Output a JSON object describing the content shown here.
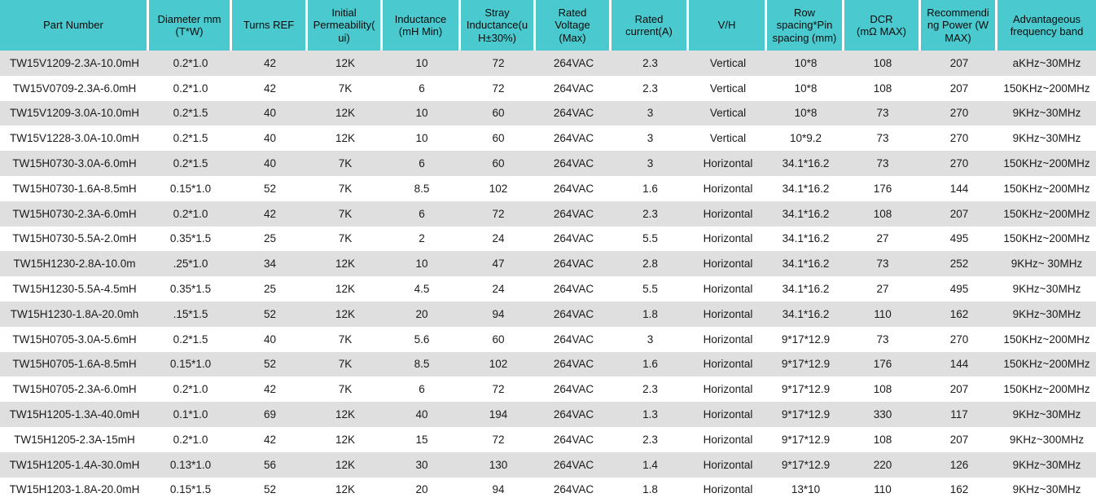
{
  "colors": {
    "header_background": "#4AC9CE",
    "header_text": "#0b0b0b",
    "row_alternate_background": "#DFDFDF",
    "row_background": "#FFFFFF",
    "cell_text": "#1B1B1B",
    "header_divider": "#FFFFFF"
  },
  "table": {
    "columns": [
      {
        "id": "part-number",
        "label": "Part Number"
      },
      {
        "id": "diameter",
        "label": "Diameter mm\n(T*W)"
      },
      {
        "id": "turns-ref",
        "label": "Turns  REF"
      },
      {
        "id": "initial-permeability",
        "label": "Initial\nPermeability(\nui)"
      },
      {
        "id": "inductance",
        "label": "Inductance\n(mH Min)"
      },
      {
        "id": "stray-inductance",
        "label": "Stray\nInductance(u\nH±30%)"
      },
      {
        "id": "rated-voltage",
        "label": "Rated\nVoltage\n(Max)"
      },
      {
        "id": "rated-current",
        "label": "Rated\ncurrent(A)"
      },
      {
        "id": "v-h",
        "label": "V/H"
      },
      {
        "id": "row-pin-spacing",
        "label": "Row\nspacing*Pin\nspacing (mm)"
      },
      {
        "id": "dcr",
        "label": "DCR\n(mΩ MAX)"
      },
      {
        "id": "recommending-power",
        "label": "Recommendi\nng Power (W\nMAX)"
      },
      {
        "id": "frequency-band",
        "label": "Advantageous\nfrequency band"
      }
    ],
    "rows": [
      [
        "TW15V1209-2.3A-10.0mH",
        "0.2*1.0",
        "42",
        "12K",
        "10",
        "72",
        "264VAC",
        "2.3",
        "Vertical",
        "10*8",
        "108",
        "207",
        "aKHz~30MHz"
      ],
      [
        "TW15V0709-2.3A-6.0mH",
        "0.2*1.0",
        "42",
        "7K",
        "6",
        "72",
        "264VAC",
        "2.3",
        "Vertical",
        "10*8",
        "108",
        "207",
        "150KHz~200MHz"
      ],
      [
        "TW15V1209-3.0A-10.0mH",
        "0.2*1.5",
        "40",
        "12K",
        "10",
        "60",
        "264VAC",
        "3",
        "Vertical",
        "10*8",
        "73",
        "270",
        "9KHz~30MHz"
      ],
      [
        "TW15V1228-3.0A-10.0mH",
        "0.2*1.5",
        "40",
        "12K",
        "10",
        "60",
        "264VAC",
        "3",
        "Vertical",
        "10*9.2",
        "73",
        "270",
        "9KHz~30MHz"
      ],
      [
        "TW15H0730-3.0A-6.0mH",
        "0.2*1.5",
        "40",
        "7K",
        "6",
        "60",
        "264VAC",
        "3",
        "Horizontal",
        "34.1*16.2",
        "73",
        "270",
        "150KHz~200MHz"
      ],
      [
        "TW15H0730-1.6A-8.5mH",
        "0.15*1.0",
        "52",
        "7K",
        "8.5",
        "102",
        "264VAC",
        "1.6",
        "Horizontal",
        "34.1*16.2",
        "176",
        "144",
        "150KHz~200MHz"
      ],
      [
        "TW15H0730-2.3A-6.0mH",
        "0.2*1.0",
        "42",
        "7K",
        "6",
        "72",
        "264VAC",
        "2.3",
        "Horizontal",
        "34.1*16.2",
        "108",
        "207",
        "150KHz~200MHz"
      ],
      [
        "TW15H0730-5.5A-2.0mH",
        "0.35*1.5",
        "25",
        "7K",
        "2",
        "24",
        "264VAC",
        "5.5",
        "Horizontal",
        "34.1*16.2",
        "27",
        "495",
        "150KHz~200MHz"
      ],
      [
        "TW15H1230-2.8A-10.0m",
        ".25*1.0",
        "34",
        "12K",
        "10",
        "47",
        "264VAC",
        "2.8",
        "Horizontal",
        "34.1*16.2",
        "73",
        "252",
        "9KHz~ 30MHz"
      ],
      [
        "TW15H1230-5.5A-4.5mH",
        "0.35*1.5",
        "25",
        "12K",
        "4.5",
        "24",
        "264VAC",
        "5.5",
        "Horizontal",
        "34.1*16.2",
        "27",
        "495",
        "9KHz~30MHz"
      ],
      [
        "TW15H1230-1.8A-20.0mh",
        ".15*1.5",
        "52",
        "12K",
        "20",
        "94",
        "264VAC",
        "1.8",
        "Horizontal",
        "34.1*16.2",
        "110",
        "162",
        "9KHz~30MHz"
      ],
      [
        "TW15H0705-3.0A-5.6mH",
        "0.2*1.5",
        "40",
        "7K",
        "5.6",
        "60",
        "264VAC",
        "3",
        "Horizontal",
        "9*17*12.9",
        "73",
        "270",
        "150KHz~200MHz"
      ],
      [
        "TW15H0705-1.6A-8.5mH",
        "0.15*1.0",
        "52",
        "7K",
        "8.5",
        "102",
        "264VAC",
        "1.6",
        "Horizontal",
        "9*17*12.9",
        "176",
        "144",
        "150KHz~200MHz"
      ],
      [
        "TW15H0705-2.3A-6.0mH",
        "0.2*1.0",
        "42",
        "7K",
        "6",
        "72",
        "264VAC",
        "2.3",
        "Horizontal",
        "9*17*12.9",
        "108",
        "207",
        "150KHz~200MHz"
      ],
      [
        "TW15H1205-1.3A-40.0mH",
        "0.1*1.0",
        "69",
        "12K",
        "40",
        "194",
        "264VAC",
        "1.3",
        "Horizontal",
        "9*17*12.9",
        "330",
        "117",
        "9KHz~30MHz"
      ],
      [
        "TW15H1205-2.3A-15mH",
        "0.2*1.0",
        "42",
        "12K",
        "15",
        "72",
        "264VAC",
        "2.3",
        "Horizontal",
        "9*17*12.9",
        "108",
        "207",
        "9KHz~300MHz"
      ],
      [
        "TW15H1205-1.4A-30.0mH",
        "0.13*1.0",
        "56",
        "12K",
        "30",
        "130",
        "264VAC",
        "1.4",
        "Horizontal",
        "9*17*12.9",
        "220",
        "126",
        "9KHz~30MHz"
      ],
      [
        "TW15H1203-1.8A-20.0mH",
        "0.15*1.5",
        "52",
        "12K",
        "20",
        "94",
        "264VAC",
        "1.8",
        "Horizontal",
        "13*10",
        "110",
        "162",
        "9KHz~30MHz"
      ]
    ]
  }
}
